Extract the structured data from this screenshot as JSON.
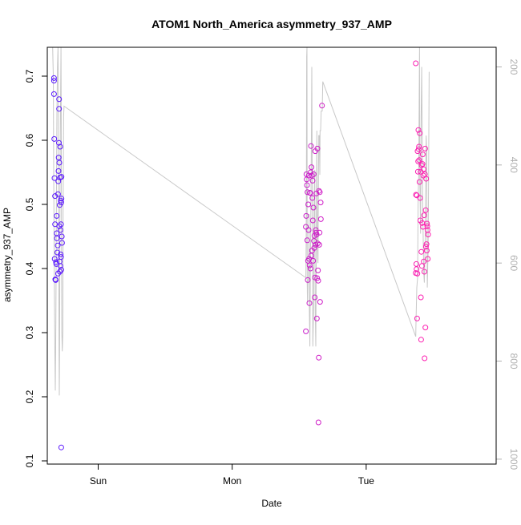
{
  "chart_data": {
    "type": "scatter",
    "title": "ATOM1 North_America asymmetry_937_AMP",
    "xlabel": "Date",
    "ylabel": "asymmetry_937_AMP",
    "x_unit": "days (0 = Sun 00:00)",
    "xlim": [
      -0.38,
      2.97
    ],
    "ylim": [
      0.095,
      0.745
    ],
    "x_ticks": [
      {
        "value": 0,
        "label": "Sun"
      },
      {
        "value": 1,
        "label": "Mon"
      },
      {
        "value": 2,
        "label": "Tue"
      }
    ],
    "y_ticks": [
      {
        "value": 0.1,
        "label": "0.1"
      },
      {
        "value": 0.2,
        "label": "0.2"
      },
      {
        "value": 0.3,
        "label": "0.3"
      },
      {
        "value": 0.4,
        "label": "0.4"
      },
      {
        "value": 0.5,
        "label": "0.5"
      },
      {
        "value": 0.6,
        "label": "0.6"
      },
      {
        "value": 0.7,
        "label": "0.7"
      }
    ],
    "right_axis": {
      "ylim": [
        1010,
        160
      ],
      "ticks": [
        {
          "value": 200,
          "label": "200"
        },
        {
          "value": 400,
          "label": "400"
        },
        {
          "value": 600,
          "label": "600"
        },
        {
          "value": 800,
          "label": "800"
        },
        {
          "value": 1000,
          "label": "1000"
        }
      ]
    },
    "point_color_start": "#5a1aff",
    "point_color_end": "#ff20b0",
    "line_color": "#c8c8c8",
    "series": [
      {
        "name": "asymmetry_937_AMP",
        "points": [
          [
            -0.33,
            0.697
          ],
          [
            -0.33,
            0.693
          ],
          [
            -0.33,
            0.672
          ],
          [
            -0.328,
            0.602
          ],
          [
            -0.326,
            0.541
          ],
          [
            -0.322,
            0.513
          ],
          [
            -0.322,
            0.469
          ],
          [
            -0.325,
            0.415
          ],
          [
            -0.32,
            0.383
          ],
          [
            -0.318,
            0.382
          ],
          [
            -0.315,
            0.41
          ],
          [
            -0.313,
            0.407
          ],
          [
            -0.31,
            0.455
          ],
          [
            -0.31,
            0.482
          ],
          [
            -0.308,
            0.447
          ],
          [
            -0.305,
            0.425
          ],
          [
            -0.302,
            0.436
          ],
          [
            -0.3,
            0.516
          ],
          [
            -0.3,
            0.392
          ],
          [
            -0.298,
            0.536
          ],
          [
            -0.296,
            0.552
          ],
          [
            -0.295,
            0.573
          ],
          [
            -0.293,
            0.596
          ],
          [
            -0.292,
            0.664
          ],
          [
            -0.292,
            0.649
          ],
          [
            -0.29,
            0.565
          ],
          [
            -0.29,
            0.466
          ],
          [
            -0.288,
            0.499
          ],
          [
            -0.288,
            0.411
          ],
          [
            -0.286,
            0.395
          ],
          [
            -0.284,
            0.59
          ],
          [
            -0.284,
            0.542
          ],
          [
            -0.282,
            0.46
          ],
          [
            -0.282,
            0.404
          ],
          [
            -0.28,
            0.506
          ],
          [
            -0.28,
            0.422
          ],
          [
            -0.278,
            0.469
          ],
          [
            -0.278,
            0.418
          ],
          [
            -0.276,
            0.503
          ],
          [
            -0.276,
            0.398
          ],
          [
            -0.274,
            0.543
          ],
          [
            -0.274,
            0.509
          ],
          [
            -0.272,
            0.45
          ],
          [
            -0.27,
            0.44
          ],
          [
            -0.276,
            0.121
          ],
          [
            1.55,
            0.302
          ],
          [
            1.55,
            0.465
          ],
          [
            1.552,
            0.482
          ],
          [
            1.554,
            0.547
          ],
          [
            1.556,
            0.539
          ],
          [
            1.558,
            0.53
          ],
          [
            1.56,
            0.444
          ],
          [
            1.562,
            0.519
          ],
          [
            1.564,
            0.382
          ],
          [
            1.566,
            0.412
          ],
          [
            1.568,
            0.5
          ],
          [
            1.57,
            0.46
          ],
          [
            1.572,
            0.545
          ],
          [
            1.574,
            0.415
          ],
          [
            1.576,
            0.346
          ],
          [
            1.578,
            0.405
          ],
          [
            1.58,
            0.518
          ],
          [
            1.582,
            0.518
          ],
          [
            1.584,
            0.4
          ],
          [
            1.586,
            0.55
          ],
          [
            1.588,
            0.591
          ],
          [
            1.59,
            0.42
          ],
          [
            1.592,
            0.558
          ],
          [
            1.594,
            0.545
          ],
          [
            1.596,
            0.428
          ],
          [
            1.598,
            0.51
          ],
          [
            1.6,
            0.537
          ],
          [
            1.602,
            0.475
          ],
          [
            1.604,
            0.412
          ],
          [
            1.606,
            0.495
          ],
          [
            1.608,
            0.547
          ],
          [
            1.61,
            0.443
          ],
          [
            1.612,
            0.432
          ],
          [
            1.614,
            0.451
          ],
          [
            1.616,
            0.355
          ],
          [
            1.618,
            0.386
          ],
          [
            1.62,
            0.583
          ],
          [
            1.622,
            0.437
          ],
          [
            1.624,
            0.46
          ],
          [
            1.626,
            0.456
          ],
          [
            1.628,
            0.517
          ],
          [
            1.63,
            0.453
          ],
          [
            1.632,
            0.322
          ],
          [
            1.634,
            0.385
          ],
          [
            1.636,
            0.587
          ],
          [
            1.638,
            0.439
          ],
          [
            1.64,
            0.397
          ],
          [
            1.642,
            0.381
          ],
          [
            1.644,
            0.16
          ],
          [
            1.646,
            0.261
          ],
          [
            1.648,
            0.521
          ],
          [
            1.65,
            0.437
          ],
          [
            1.652,
            0.456
          ],
          [
            1.654,
            0.519
          ],
          [
            1.656,
            0.348
          ],
          [
            1.66,
            0.503
          ],
          [
            1.662,
            0.477
          ],
          [
            1.67,
            0.654
          ],
          [
            2.37,
            0.72
          ],
          [
            2.37,
            0.393
          ],
          [
            2.372,
            0.515
          ],
          [
            2.374,
            0.407
          ],
          [
            2.376,
            0.399
          ],
          [
            2.378,
            0.514
          ],
          [
            2.38,
            0.322
          ],
          [
            2.382,
            0.392
          ],
          [
            2.384,
            0.583
          ],
          [
            2.386,
            0.551
          ],
          [
            2.388,
            0.567
          ],
          [
            2.39,
            0.616
          ],
          [
            2.392,
            0.586
          ],
          [
            2.394,
            0.59
          ],
          [
            2.396,
            0.569
          ],
          [
            2.398,
            0.535
          ],
          [
            2.4,
            0.611
          ],
          [
            2.402,
            0.51
          ],
          [
            2.404,
            0.475
          ],
          [
            2.406,
            0.551
          ],
          [
            2.408,
            0.355
          ],
          [
            2.41,
            0.289
          ],
          [
            2.412,
            0.426
          ],
          [
            2.414,
            0.561
          ],
          [
            2.416,
            0.404
          ],
          [
            2.418,
            0.471
          ],
          [
            2.42,
            0.563
          ],
          [
            2.422,
            0.578
          ],
          [
            2.424,
            0.465
          ],
          [
            2.426,
            0.545
          ],
          [
            2.428,
            0.555
          ],
          [
            2.43,
            0.411
          ],
          [
            2.432,
            0.483
          ],
          [
            2.434,
            0.395
          ],
          [
            2.436,
            0.26
          ],
          [
            2.438,
            0.547
          ],
          [
            2.44,
            0.587
          ],
          [
            2.442,
            0.308
          ],
          [
            2.444,
            0.491
          ],
          [
            2.446,
            0.434
          ],
          [
            2.448,
            0.54
          ],
          [
            2.45,
            0.438
          ],
          [
            2.452,
            0.428
          ],
          [
            2.454,
            0.47
          ],
          [
            2.456,
            0.466
          ],
          [
            2.458,
            0.46
          ],
          [
            2.46,
            0.415
          ],
          [
            2.462,
            0.453
          ]
        ]
      },
      {
        "name": "right-axis-line",
        "axis": "right",
        "points": [
          [
            -0.34,
            160
          ],
          [
            -0.335,
            220
          ],
          [
            -0.332,
            420
          ],
          [
            -0.328,
            620
          ],
          [
            -0.324,
            770
          ],
          [
            -0.32,
            860
          ],
          [
            -0.316,
            720
          ],
          [
            -0.312,
            470
          ],
          [
            -0.308,
            300
          ],
          [
            -0.304,
            200
          ],
          [
            -0.3,
            160
          ],
          [
            -0.298,
            230
          ],
          [
            -0.296,
            420
          ],
          [
            -0.294,
            610
          ],
          [
            -0.292,
            780
          ],
          [
            -0.29,
            870
          ],
          [
            -0.288,
            760
          ],
          [
            -0.286,
            560
          ],
          [
            -0.284,
            400
          ],
          [
            -0.282,
            300
          ],
          [
            -0.28,
            240
          ],
          [
            -0.278,
            160
          ],
          [
            -0.276,
            300
          ],
          [
            -0.274,
            560
          ],
          [
            -0.272,
            740
          ],
          [
            -0.268,
            780
          ],
          [
            -0.264,
            740
          ],
          [
            -0.262,
            500
          ],
          [
            -0.258,
            300
          ],
          [
            -0.255,
            280
          ],
          [
            1.55,
            630
          ],
          [
            1.552,
            560
          ],
          [
            1.554,
            420
          ],
          [
            1.556,
            180
          ],
          [
            1.558,
            160
          ],
          [
            1.56,
            640
          ],
          [
            1.562,
            680
          ],
          [
            1.564,
            640
          ],
          [
            1.57,
            630
          ],
          [
            1.574,
            500
          ],
          [
            1.576,
            700
          ],
          [
            1.58,
            770
          ],
          [
            1.584,
            600
          ],
          [
            1.59,
            400
          ],
          [
            1.594,
            200
          ],
          [
            1.598,
            490
          ],
          [
            1.602,
            770
          ],
          [
            1.608,
            690
          ],
          [
            1.612,
            460
          ],
          [
            1.616,
            410
          ],
          [
            1.618,
            580
          ],
          [
            1.62,
            700
          ],
          [
            1.624,
            770
          ],
          [
            1.628,
            550
          ],
          [
            1.632,
            330
          ],
          [
            1.636,
            570
          ],
          [
            1.64,
            600
          ],
          [
            1.642,
            510
          ],
          [
            1.646,
            340
          ],
          [
            1.65,
            340
          ],
          [
            1.654,
            420
          ],
          [
            1.656,
            330
          ],
          [
            1.66,
            330
          ],
          [
            1.664,
            290
          ],
          [
            1.672,
            290
          ],
          [
            1.676,
            230
          ],
          [
            2.37,
            750
          ],
          [
            2.372,
            720
          ],
          [
            2.378,
            650
          ],
          [
            2.384,
            630
          ],
          [
            2.388,
            470
          ],
          [
            2.392,
            420
          ],
          [
            2.396,
            260
          ],
          [
            2.398,
            160
          ],
          [
            2.4,
            420
          ],
          [
            2.404,
            500
          ],
          [
            2.406,
            540
          ],
          [
            2.41,
            300
          ],
          [
            2.414,
            200
          ],
          [
            2.418,
            330
          ],
          [
            2.422,
            490
          ],
          [
            2.426,
            560
          ],
          [
            2.43,
            620
          ],
          [
            2.434,
            640
          ],
          [
            2.44,
            560
          ],
          [
            2.444,
            420
          ],
          [
            2.448,
            340
          ],
          [
            2.452,
            380
          ],
          [
            2.456,
            650
          ],
          [
            2.46,
            600
          ],
          [
            2.462,
            580
          ],
          [
            2.466,
            430
          ],
          [
            2.47,
            210
          ]
        ]
      }
    ]
  }
}
